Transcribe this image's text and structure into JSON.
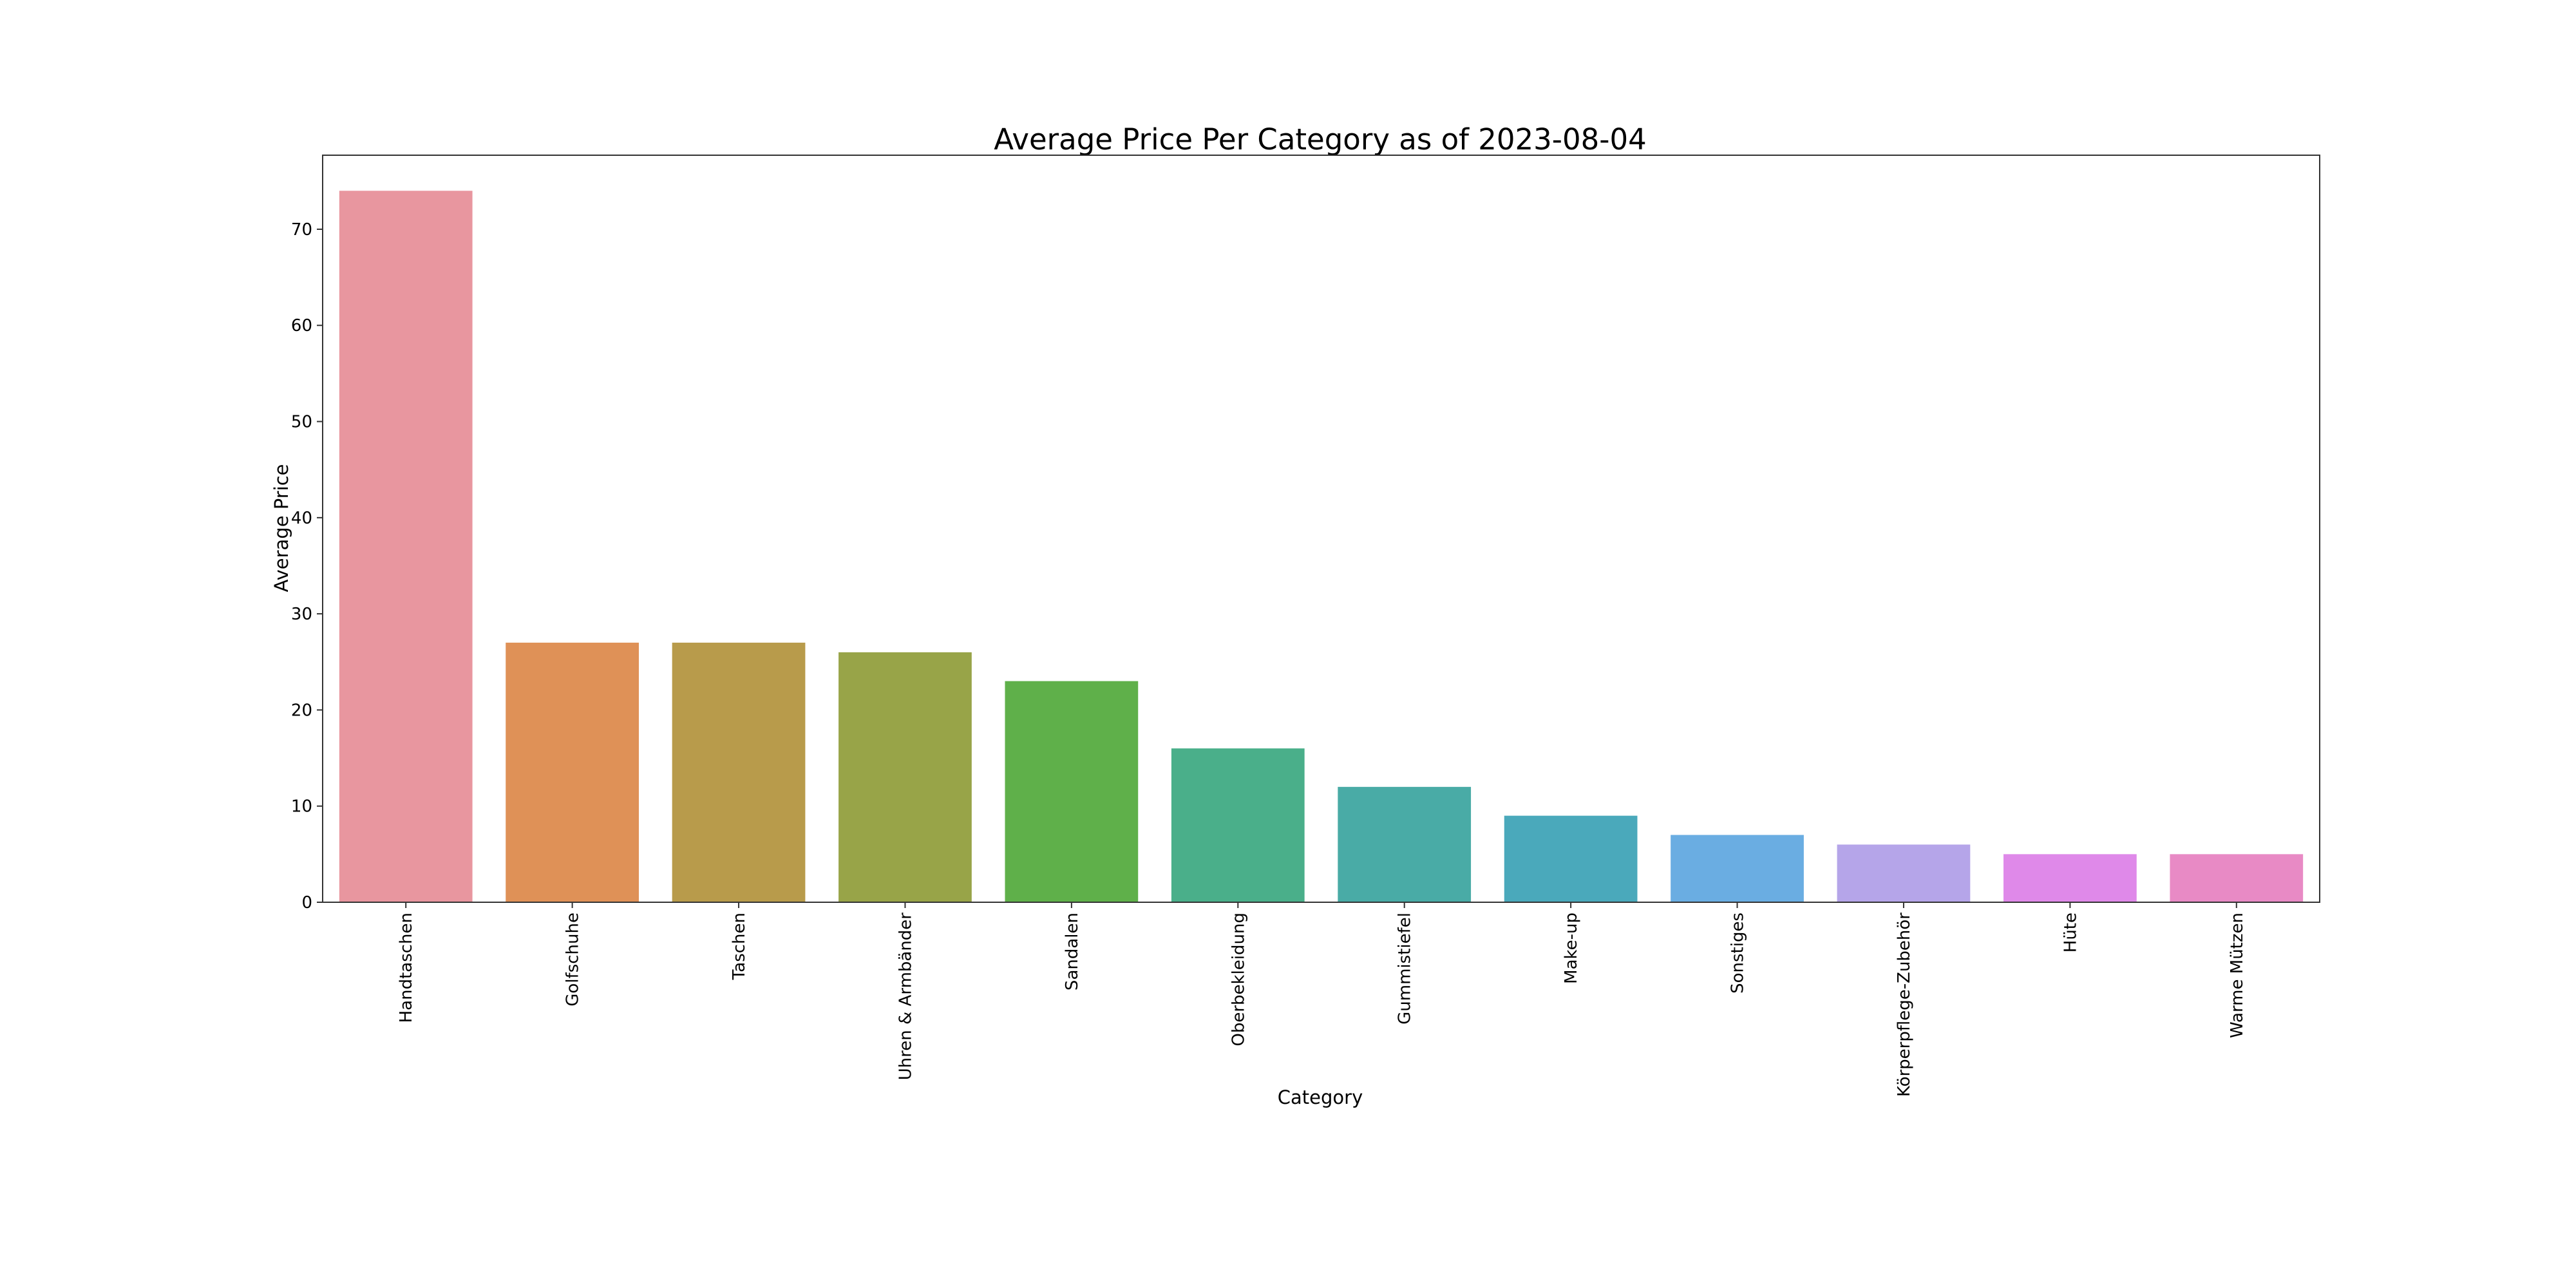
{
  "chart_data": {
    "type": "bar",
    "title": "Average Price Per Category as of 2023-08-04",
    "xlabel": "Category",
    "ylabel": "Average Price",
    "categories": [
      "Handtaschen",
      "Golfschuhe",
      "Taschen",
      "Uhren & Armbänder",
      "Sandalen",
      "Oberbekleidung",
      "Gummistiefel",
      "Make-up",
      "Sonstiges",
      "Körperpflege-Zubehör",
      "Hüte",
      "Warme Mützen"
    ],
    "values": [
      74,
      27,
      27,
      26,
      23,
      16,
      12,
      9,
      7,
      6,
      5,
      5
    ],
    "colors": [
      "#e8969f",
      "#df9157",
      "#b89b4b",
      "#98a448",
      "#5fb04a",
      "#4aaf8a",
      "#49aba6",
      "#4aa9bb",
      "#6aade2",
      "#b5a5e9",
      "#df89e9",
      "#e88ac5"
    ],
    "ylim": [
      0,
      77.7
    ],
    "yticks": [
      0,
      10,
      20,
      30,
      40,
      50,
      60,
      70
    ],
    "grid": false,
    "legend": "none"
  }
}
